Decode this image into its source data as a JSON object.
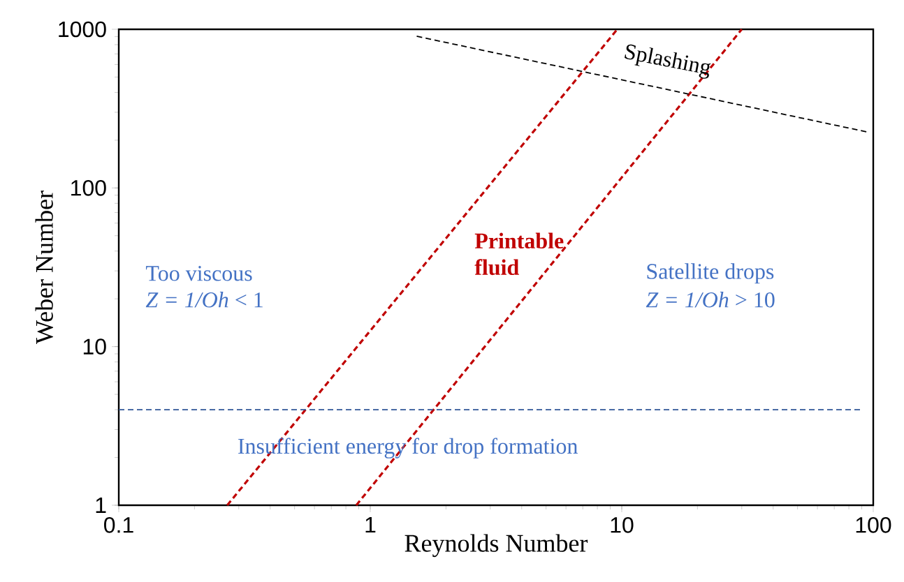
{
  "chart_data": {
    "type": "line",
    "xlabel": "Reynolds Number",
    "ylabel": "Weber Number",
    "log": "xy",
    "xlim": [
      0.1,
      100
    ],
    "ylim": [
      1,
      1000
    ],
    "xticks": [
      0.1,
      1,
      10,
      100
    ],
    "yticks": [
      1,
      10,
      100,
      1000
    ],
    "grid": false,
    "marker": "none",
    "line_style": "dashed",
    "series": [
      {
        "color": "#c00000",
        "x": [
          0.27,
          9.6
        ],
        "values": [
          1,
          1000
        ]
      },
      {
        "color": "#c00000",
        "x": [
          0.88,
          30
        ],
        "values": [
          1,
          1000
        ]
      },
      {
        "color": "#000000",
        "x": [
          1.53,
          95
        ],
        "values": [
          904,
          225
        ]
      },
      {
        "color": "#2f5597",
        "x": [
          0.1,
          89
        ],
        "values": [
          4,
          4
        ]
      }
    ],
    "annotations": [
      "Splashing",
      "Printable fluid",
      "Too viscous",
      "*Z = 1/Oh* < 1",
      "Satellite drops",
      "*Z = 1/Oh* > 10",
      "Insufficient energy for drop formation"
    ]
  }
}
